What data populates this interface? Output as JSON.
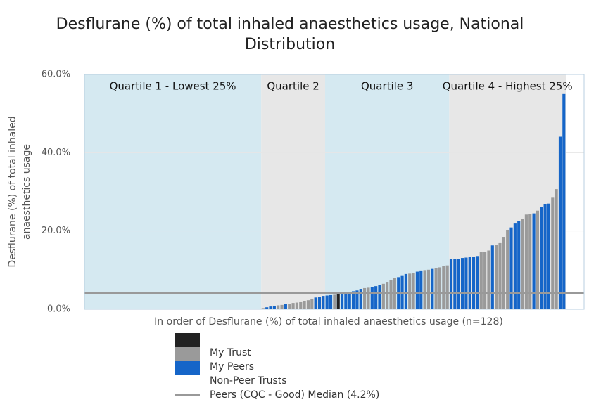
{
  "chart_data": {
    "type": "bar",
    "title": [
      "Desflurane (%) of total inhaled anaesthetics usage, National",
      "Distribution"
    ],
    "y_label": [
      "Desflurane (%) of total inhaled",
      "anaesthetics usage"
    ],
    "x_label": "In order of Desflurane (%) of total inhaled anaesthetics usage (n=128)",
    "ylim": [
      0,
      60
    ],
    "yticks": [
      {
        "value": 0,
        "label": "0.0%"
      },
      {
        "value": 20,
        "label": "20.0%"
      },
      {
        "value": 40,
        "label": "40.0%"
      },
      {
        "value": 60,
        "label": "60.0%"
      }
    ],
    "grid": true,
    "bands": [
      {
        "label": "Quartile 1 - Lowest 25%",
        "color": "#d5e9f1"
      },
      {
        "label": "Quartile 2",
        "color": "#e7e7e7"
      },
      {
        "label": "Quartile 3",
        "color": "#d5e9f1"
      },
      {
        "label": "Quartile 4 - Highest 25%",
        "color": "#e7e7e7"
      }
    ],
    "median": {
      "label": "Peers (CQC - Good) Median (4.2%)",
      "value": 4.2,
      "color": "#999999"
    },
    "series": [
      {
        "name": "My Trust",
        "color": "#222222",
        "values": [
          null,
          null,
          null,
          null,
          null,
          null,
          null,
          null,
          null,
          null,
          null,
          null,
          null,
          null,
          null,
          null,
          null,
          null,
          null,
          null,
          null,
          null,
          null,
          null,
          null,
          null,
          null,
          null,
          null,
          null,
          null,
          null,
          null,
          null,
          null,
          null,
          null,
          null,
          null,
          null,
          null,
          null,
          null,
          null,
          null,
          null,
          null,
          null,
          null,
          null,
          null,
          null,
          null,
          null,
          null,
          null,
          null,
          null,
          null,
          null,
          null,
          null,
          null,
          null,
          null,
          null,
          null,
          3.8,
          null,
          null,
          null,
          null,
          null,
          null,
          null,
          null,
          null,
          null,
          null,
          null,
          null,
          null,
          null,
          null,
          null,
          null,
          null,
          null,
          null,
          null,
          null,
          null,
          null,
          null,
          null,
          null,
          null,
          null,
          null,
          null,
          null,
          null,
          null,
          null,
          null,
          null,
          null,
          null,
          null,
          null,
          null,
          null,
          null,
          null,
          null,
          null,
          null,
          null,
          null,
          null,
          null,
          null,
          null,
          null,
          null,
          null,
          null,
          null
        ]
      },
      {
        "name": "My Peers",
        "color": "#9a9a9a",
        "values": [
          null,
          null,
          null,
          null,
          null,
          null,
          null,
          null,
          null,
          null,
          null,
          null,
          null,
          null,
          null,
          null,
          null,
          null,
          null,
          null,
          null,
          null,
          null,
          null,
          null,
          null,
          null,
          null,
          null,
          null,
          null,
          null,
          null,
          null,
          null,
          null,
          null,
          null,
          null,
          null,
          null,
          null,
          null,
          null,
          null,
          null,
          null,
          0.3,
          null,
          null,
          null,
          1.0,
          1.1,
          null,
          1.4,
          1.6,
          1.7,
          1.8,
          2.0,
          2.3,
          2.7,
          null,
          null,
          null,
          null,
          null,
          3.7,
          null,
          null,
          null,
          null,
          null,
          null,
          null,
          5.4,
          5.5,
          null,
          null,
          null,
          6.5,
          7.0,
          7.5,
          8.0,
          null,
          null,
          null,
          9.1,
          9.2,
          null,
          null,
          10.0,
          10.1,
          null,
          10.5,
          10.7,
          11.0,
          11.2,
          null,
          null,
          null,
          null,
          null,
          null,
          null,
          null,
          14.6,
          14.7,
          15.0,
          null,
          16.5,
          16.9,
          18.5,
          20.3,
          null,
          null,
          null,
          23.1,
          24.2,
          24.3,
          null,
          25.2,
          null,
          null,
          null,
          28.5,
          30.7,
          null,
          null
        ]
      },
      {
        "name": "Non-Peer Trusts",
        "color": "#1565c8",
        "values": [
          0,
          0,
          0,
          0,
          0,
          0,
          0,
          0,
          0,
          0,
          0,
          0,
          0,
          0,
          0,
          0,
          0,
          0,
          0,
          0,
          0,
          0,
          0,
          0,
          0,
          0,
          0,
          0,
          0,
          0,
          0,
          0,
          0,
          0,
          0,
          0,
          0,
          0,
          0,
          0,
          0,
          0,
          0,
          0,
          0,
          0,
          0,
          null,
          0.5,
          0.7,
          0.9,
          null,
          null,
          1.3,
          null,
          null,
          null,
          null,
          null,
          null,
          null,
          3.0,
          3.2,
          3.4,
          3.5,
          3.6,
          null,
          null,
          3.9,
          4.0,
          4.3,
          4.6,
          4.8,
          5.2,
          null,
          null,
          5.6,
          5.9,
          6.2,
          null,
          null,
          null,
          null,
          8.2,
          8.5,
          9.0,
          null,
          null,
          9.6,
          9.9,
          null,
          null,
          10.3,
          null,
          null,
          null,
          null,
          12.8,
          12.8,
          12.9,
          13.1,
          13.2,
          13.3,
          13.4,
          13.6,
          null,
          null,
          null,
          16.3,
          null,
          null,
          null,
          null,
          20.9,
          21.9,
          22.6,
          null,
          null,
          null,
          24.5,
          null,
          26.1,
          26.9,
          27.0,
          null,
          null,
          44.1,
          55.0
        ]
      }
    ]
  }
}
